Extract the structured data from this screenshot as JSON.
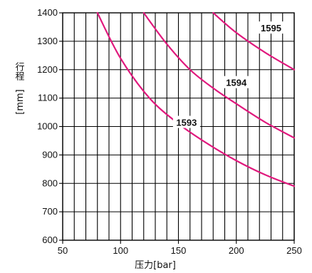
{
  "chart_data": {
    "type": "line",
    "xlabel": "压力[bar]",
    "ylabel_top": "行程",
    "ylabel_unit": "[mm]",
    "xlim": [
      50,
      250
    ],
    "ylim": [
      600,
      1400
    ],
    "x_ticks": [
      50,
      100,
      150,
      200,
      250
    ],
    "y_ticks": [
      600,
      700,
      800,
      900,
      1000,
      1100,
      1200,
      1300,
      1400
    ],
    "x_minor_step": 10,
    "grid": true,
    "colors": {
      "curve": "#e0197d",
      "grid": "#000000",
      "label_bg": "#ffffff"
    },
    "series": [
      {
        "name": "1593",
        "x": [
          80,
          100,
          125,
          150,
          175,
          200,
          225,
          250
        ],
        "y": [
          1400,
          1240,
          1100,
          1010,
          940,
          880,
          830,
          790
        ]
      },
      {
        "name": "1594",
        "x": [
          120,
          140,
          160,
          180,
          200,
          225,
          250
        ],
        "y": [
          1400,
          1290,
          1200,
          1135,
          1080,
          1015,
          960
        ]
      },
      {
        "name": "1595",
        "x": [
          180,
          200,
          225,
          250
        ],
        "y": [
          1400,
          1330,
          1260,
          1200
        ]
      }
    ]
  }
}
